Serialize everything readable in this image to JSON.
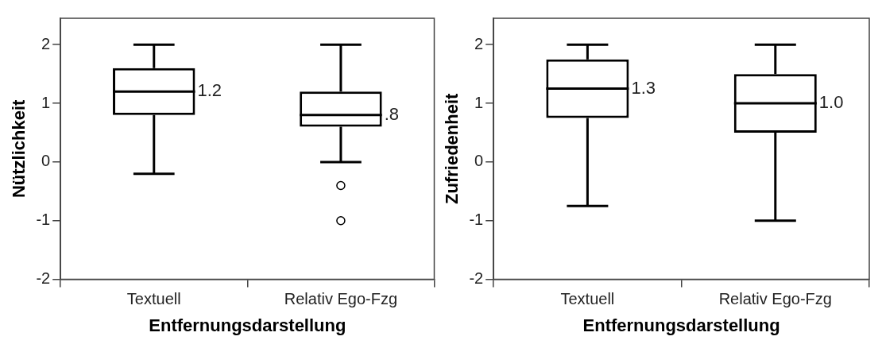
{
  "chart_data": [
    {
      "type": "box",
      "xlabel": "Entfernungsdarstellung",
      "ylabel": "Nützlichkeit",
      "categories": [
        "Textuell",
        "Relativ Ego-Fzg"
      ],
      "color": "#000000",
      "ylim": [
        -2,
        2.45
      ],
      "yticks": [
        -2,
        -1,
        0,
        1,
        2
      ],
      "grid": false,
      "legend": false,
      "boxes": [
        {
          "low": -0.2,
          "q1": 0.8,
          "median": 1.2,
          "q3": 1.6,
          "high": 2
        },
        {
          "low": 0,
          "q1": 0.6,
          "median": 0.8,
          "q3": 1.2,
          "high": 2,
          "outliers": [
            -0.4,
            -1
          ]
        }
      ],
      "annotations": [
        {
          "text": "1.2",
          "x": "Textuell",
          "y": 1.2
        },
        {
          "text": ".8",
          "x": "Relativ Ego-Fzg",
          "y": 0.8
        }
      ]
    },
    {
      "type": "box",
      "xlabel": "Entfernungsdarstellung",
      "ylabel": "Zufriedenheit",
      "categories": [
        "Textuell",
        "Relativ Ego-Fzg"
      ],
      "color": "#000000",
      "ylim": [
        -2,
        2.45
      ],
      "yticks": [
        -2,
        -1,
        0,
        1,
        2
      ],
      "grid": false,
      "legend": false,
      "boxes": [
        {
          "low": -0.75,
          "q1": 0.75,
          "median": 1.25,
          "q3": 1.75,
          "high": 2
        },
        {
          "low": -1,
          "q1": 0.5,
          "median": 1.0,
          "q3": 1.5,
          "high": 2
        }
      ],
      "annotations": [
        {
          "text": "1.3",
          "x": "Textuell",
          "y": 1.25
        },
        {
          "text": "1.0",
          "x": "Relativ Ego-Fzg",
          "y": 1.0
        }
      ]
    }
  ]
}
